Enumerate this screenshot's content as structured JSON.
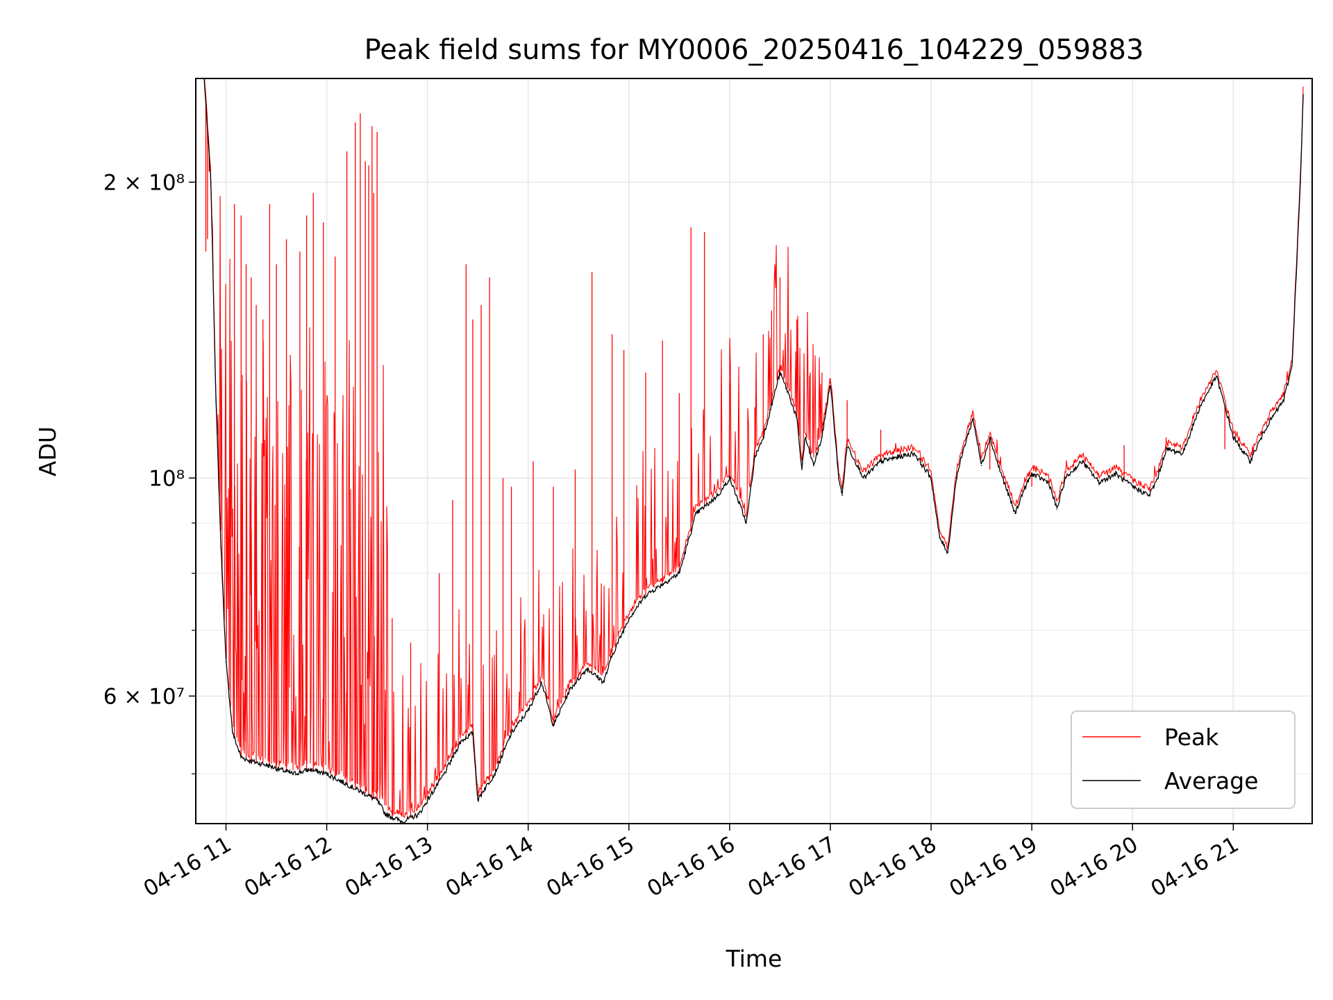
{
  "chart_data": {
    "type": "line",
    "title": "Peak field sums for MY0006_20250416_104229_059883",
    "xlabel": "Time",
    "ylabel": "ADU",
    "y_scale": "log",
    "ylim": [
      44500000,
      255000000
    ],
    "xlim": [
      "2025-04-16 10:42",
      "2025-04-16 21:47"
    ],
    "x_tick_labels": [
      "04-16 11",
      "04-16 12",
      "04-16 13",
      "04-16 14",
      "04-16 15",
      "04-16 16",
      "04-16 17",
      "04-16 18",
      "04-16 19",
      "04-16 20",
      "04-16 21"
    ],
    "x_tick_values": [
      "2025-04-16 11:00",
      "2025-04-16 12:00",
      "2025-04-16 13:00",
      "2025-04-16 14:00",
      "2025-04-16 15:00",
      "2025-04-16 16:00",
      "2025-04-16 17:00",
      "2025-04-16 18:00",
      "2025-04-16 19:00",
      "2025-04-16 20:00",
      "2025-04-16 21:00"
    ],
    "y_major_tick_labels": [
      "2 × 10⁸",
      "10⁸",
      "6 × 10⁷"
    ],
    "y_major_tick_values": [
      200000000,
      100000000,
      60000000
    ],
    "y_minor_tick_values": [
      50000000,
      70000000,
      80000000,
      90000000
    ],
    "grid": true,
    "legend": {
      "placement": "lower-right",
      "entries": [
        "Peak",
        "Average"
      ]
    },
    "colors": {
      "Peak": "#ff0000",
      "Average": "#000000"
    },
    "series": [
      {
        "name": "Average",
        "x": [
          "2025-04-16 10:47",
          "2025-04-16 10:51",
          "2025-04-16 10:54",
          "2025-04-16 10:57",
          "2025-04-16 11:00",
          "2025-04-16 11:04",
          "2025-04-16 11:09",
          "2025-04-16 11:15",
          "2025-04-16 11:25",
          "2025-04-16 11:40",
          "2025-04-16 11:50",
          "2025-04-16 12:00",
          "2025-04-16 12:10",
          "2025-04-16 12:20",
          "2025-04-16 12:30",
          "2025-04-16 12:35",
          "2025-04-16 12:45",
          "2025-04-16 12:55",
          "2025-04-16 13:00",
          "2025-04-16 13:10",
          "2025-04-16 13:20",
          "2025-04-16 13:27",
          "2025-04-16 13:30",
          "2025-04-16 13:33",
          "2025-04-16 13:40",
          "2025-04-16 13:50",
          "2025-04-16 14:00",
          "2025-04-16 14:08",
          "2025-04-16 14:15",
          "2025-04-16 14:25",
          "2025-04-16 14:35",
          "2025-04-16 14:45",
          "2025-04-16 14:50",
          "2025-04-16 15:00",
          "2025-04-16 15:10",
          "2025-04-16 15:20",
          "2025-04-16 15:30",
          "2025-04-16 15:40",
          "2025-04-16 15:50",
          "2025-04-16 15:55",
          "2025-04-16 16:00",
          "2025-04-16 16:05",
          "2025-04-16 16:10",
          "2025-04-16 16:15",
          "2025-04-16 16:20",
          "2025-04-16 16:30",
          "2025-04-16 16:35",
          "2025-04-16 16:40",
          "2025-04-16 16:43",
          "2025-04-16 16:45",
          "2025-04-16 16:50",
          "2025-04-16 16:55",
          "2025-04-16 17:00",
          "2025-04-16 17:05",
          "2025-04-16 17:07",
          "2025-04-16 17:10",
          "2025-04-16 17:20",
          "2025-04-16 17:30",
          "2025-04-16 17:40",
          "2025-04-16 17:50",
          "2025-04-16 18:00",
          "2025-04-16 18:05",
          "2025-04-16 18:10",
          "2025-04-16 18:15",
          "2025-04-16 18:20",
          "2025-04-16 18:25",
          "2025-04-16 18:30",
          "2025-04-16 18:35",
          "2025-04-16 18:40",
          "2025-04-16 18:50",
          "2025-04-16 18:55",
          "2025-04-16 19:00",
          "2025-04-16 19:10",
          "2025-04-16 19:15",
          "2025-04-16 19:20",
          "2025-04-16 19:30",
          "2025-04-16 19:40",
          "2025-04-16 19:50",
          "2025-04-16 20:00",
          "2025-04-16 20:10",
          "2025-04-16 20:15",
          "2025-04-16 20:20",
          "2025-04-16 20:30",
          "2025-04-16 20:40",
          "2025-04-16 20:50",
          "2025-04-16 21:00",
          "2025-04-16 21:10",
          "2025-04-16 21:20",
          "2025-04-16 21:30",
          "2025-04-16 21:35",
          "2025-04-16 21:40",
          "2025-04-16 21:42"
        ],
        "y": [
          255000000,
          200000000,
          120000000,
          85000000,
          65000000,
          55000000,
          52000000,
          51500000,
          51000000,
          50000000,
          50500000,
          50000000,
          49000000,
          48000000,
          47000000,
          45500000,
          44700000,
          45500000,
          47000000,
          50000000,
          54000000,
          55000000,
          47000000,
          48000000,
          50000000,
          55000000,
          58000000,
          62000000,
          56000000,
          61000000,
          64000000,
          62000000,
          66000000,
          72000000,
          76000000,
          78000000,
          80000000,
          92000000,
          95000000,
          97000000,
          100000000,
          95000000,
          90000000,
          105000000,
          110000000,
          128000000,
          122000000,
          115000000,
          102000000,
          110000000,
          103000000,
          110000000,
          125000000,
          100000000,
          96000000,
          108000000,
          100000000,
          104000000,
          105000000,
          106000000,
          100000000,
          87000000,
          84000000,
          100000000,
          108000000,
          115000000,
          103000000,
          110000000,
          103000000,
          92000000,
          97000000,
          101000000,
          99000000,
          93000000,
          100000000,
          104000000,
          99000000,
          101000000,
          98000000,
          96000000,
          100000000,
          107000000,
          106000000,
          118000000,
          127000000,
          110000000,
          104000000,
          113000000,
          120000000,
          130000000,
          200000000,
          255000000
        ]
      },
      {
        "name": "Peak",
        "x": [
          "2025-04-16 10:48",
          "2025-04-16 10:49",
          "2025-04-16 10:50",
          "2025-04-16 11:05",
          "2025-04-16 11:09",
          "2025-04-16 11:12",
          "2025-04-16 11:15",
          "2025-04-16 11:18",
          "2025-04-16 11:22",
          "2025-04-16 11:26",
          "2025-04-16 11:30",
          "2025-04-16 11:36",
          "2025-04-16 11:44",
          "2025-04-16 11:48",
          "2025-04-16 11:52",
          "2025-04-16 11:58",
          "2025-04-16 12:05",
          "2025-04-16 12:12",
          "2025-04-16 12:17",
          "2025-04-16 12:20",
          "2025-04-16 12:23",
          "2025-04-16 12:25",
          "2025-04-16 12:27",
          "2025-04-16 12:28",
          "2025-04-16 12:30",
          "2025-04-16 12:39",
          "2025-04-16 12:50",
          "2025-04-16 13:07",
          "2025-04-16 13:15",
          "2025-04-16 13:23",
          "2025-04-16 13:27",
          "2025-04-16 13:32",
          "2025-04-16 13:37",
          "2025-04-16 13:45",
          "2025-04-16 13:50",
          "2025-04-16 14:03",
          "2025-04-16 14:15",
          "2025-04-16 14:28",
          "2025-04-16 14:38",
          "2025-04-16 14:50",
          "2025-04-16 14:57",
          "2025-04-16 15:10",
          "2025-04-16 15:20",
          "2025-04-16 15:30",
          "2025-04-16 15:37",
          "2025-04-16 15:45",
          "2025-04-16 16:00",
          "2025-04-16 16:15",
          "2025-04-16 16:20",
          "2025-04-16 16:25",
          "2025-04-16 16:30",
          "2025-04-16 16:40",
          "2025-04-16 16:48",
          "2025-04-16 16:55",
          "2025-04-16 17:10",
          "2025-04-16 17:30",
          "2025-04-16 18:35",
          "2025-04-16 19:00",
          "2025-04-16 19:55",
          "2025-04-16 20:20",
          "2025-04-16 20:55"
        ],
        "y": [
          170000000,
          175000000,
          205000000,
          190000000,
          185000000,
          165000000,
          160000000,
          150000000,
          145000000,
          190000000,
          165000000,
          175000000,
          170000000,
          185000000,
          195000000,
          182000000,
          168000000,
          215000000,
          230000000,
          235000000,
          210000000,
          208000000,
          228000000,
          195000000,
          225000000,
          72000000,
          68000000,
          80000000,
          95000000,
          165000000,
          145000000,
          150000000,
          160000000,
          100000000,
          98000000,
          104000000,
          98000000,
          102000000,
          162000000,
          140000000,
          135000000,
          128000000,
          138000000,
          122000000,
          180000000,
          178000000,
          125000000,
          118000000,
          140000000,
          148000000,
          160000000,
          145000000,
          128000000,
          128000000,
          120000000,
          112000000,
          102000000,
          98000000,
          108000000,
          110000000,
          107000000
        ]
      }
    ]
  }
}
